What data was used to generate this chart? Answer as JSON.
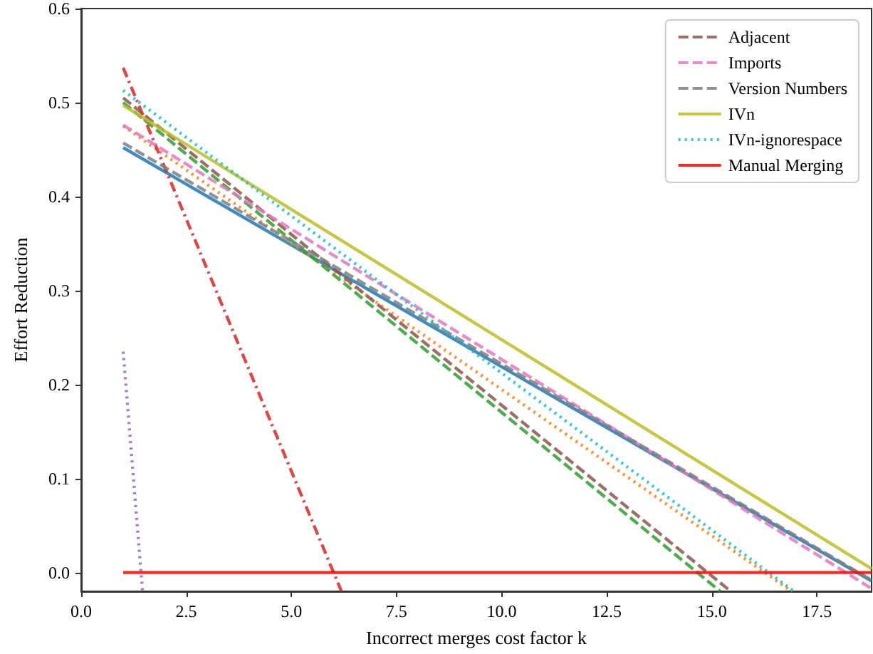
{
  "chart_data": {
    "type": "line",
    "xlabel": "Incorrect merges cost factor k",
    "ylabel": "Effort Reduction",
    "xlim": [
      0,
      18.8
    ],
    "ylim": [
      -0.02,
      0.6
    ],
    "xticks": [
      {
        "value": 0,
        "label": "0.0"
      },
      {
        "value": 2.5,
        "label": "2.5"
      },
      {
        "value": 5,
        "label": "5.0"
      },
      {
        "value": 7.5,
        "label": "7.5"
      },
      {
        "value": 10,
        "label": "10.0"
      },
      {
        "value": 12.5,
        "label": "12.5"
      },
      {
        "value": 15,
        "label": "15.0"
      },
      {
        "value": 17.5,
        "label": "17.5"
      }
    ],
    "yticks": [
      {
        "value": 0,
        "label": "0.0"
      },
      {
        "value": 0.1,
        "label": "0.1"
      },
      {
        "value": 0.2,
        "label": "0.2"
      },
      {
        "value": 0.3,
        "label": "0.3"
      },
      {
        "value": 0.4,
        "label": "0.4"
      },
      {
        "value": 0.5,
        "label": "0.5"
      },
      {
        "value": 0.6,
        "label": "0.6"
      }
    ],
    "grid": false,
    "legend": "top right",
    "marker": "none",
    "series": [
      {
        "color": "#1f77b4",
        "line_style": "solid",
        "x": [
          1,
          18.8
        ],
        "values": [
          0.452,
          -0.009
        ]
      },
      {
        "color": "#ff7f0e",
        "line_style": "dotted",
        "x": [
          1,
          16.9
        ],
        "values": [
          0.475,
          -0.02
        ]
      },
      {
        "color": "#2ca02c",
        "line_style": "dashed",
        "x": [
          1,
          15.2
        ],
        "values": [
          0.5,
          -0.02
        ]
      },
      {
        "color": "#d62728",
        "line_style": "dashdot",
        "x": [
          1,
          6.19
        ],
        "values": [
          0.537,
          -0.02
        ]
      },
      {
        "color": "#9467bd",
        "line_style": "dotted",
        "x": [
          1,
          1.46
        ],
        "values": [
          0.235,
          -0.02
        ]
      },
      {
        "name": "Adjacent",
        "color": "#8c564b",
        "line_style": "dashed",
        "x": [
          1,
          15.45
        ],
        "values": [
          0.505,
          -0.02
        ]
      },
      {
        "name": "Imports",
        "color": "#e377c2",
        "line_style": "dashed",
        "x": [
          1,
          18.8
        ],
        "values": [
          0.476,
          -0.017
        ]
      },
      {
        "name": "Version Numbers",
        "color": "#7f7f7f",
        "line_style": "dashed",
        "x": [
          1,
          18.8
        ],
        "values": [
          0.457,
          -0.008
        ]
      },
      {
        "name": "IVn",
        "color": "#bcbd22",
        "line_style": "solid",
        "x": [
          1,
          18.8
        ],
        "values": [
          0.497,
          0.004
        ]
      },
      {
        "name": "IVn-ignorespace",
        "color": "#17becf",
        "line_style": "dotted",
        "x": [
          1,
          16.95
        ],
        "values": [
          0.513,
          -0.02
        ]
      },
      {
        "name": "Manual Merging",
        "color": "#ff0000",
        "line_style": "solid",
        "x": [
          1,
          18.8
        ],
        "values": [
          0,
          0
        ]
      }
    ]
  }
}
